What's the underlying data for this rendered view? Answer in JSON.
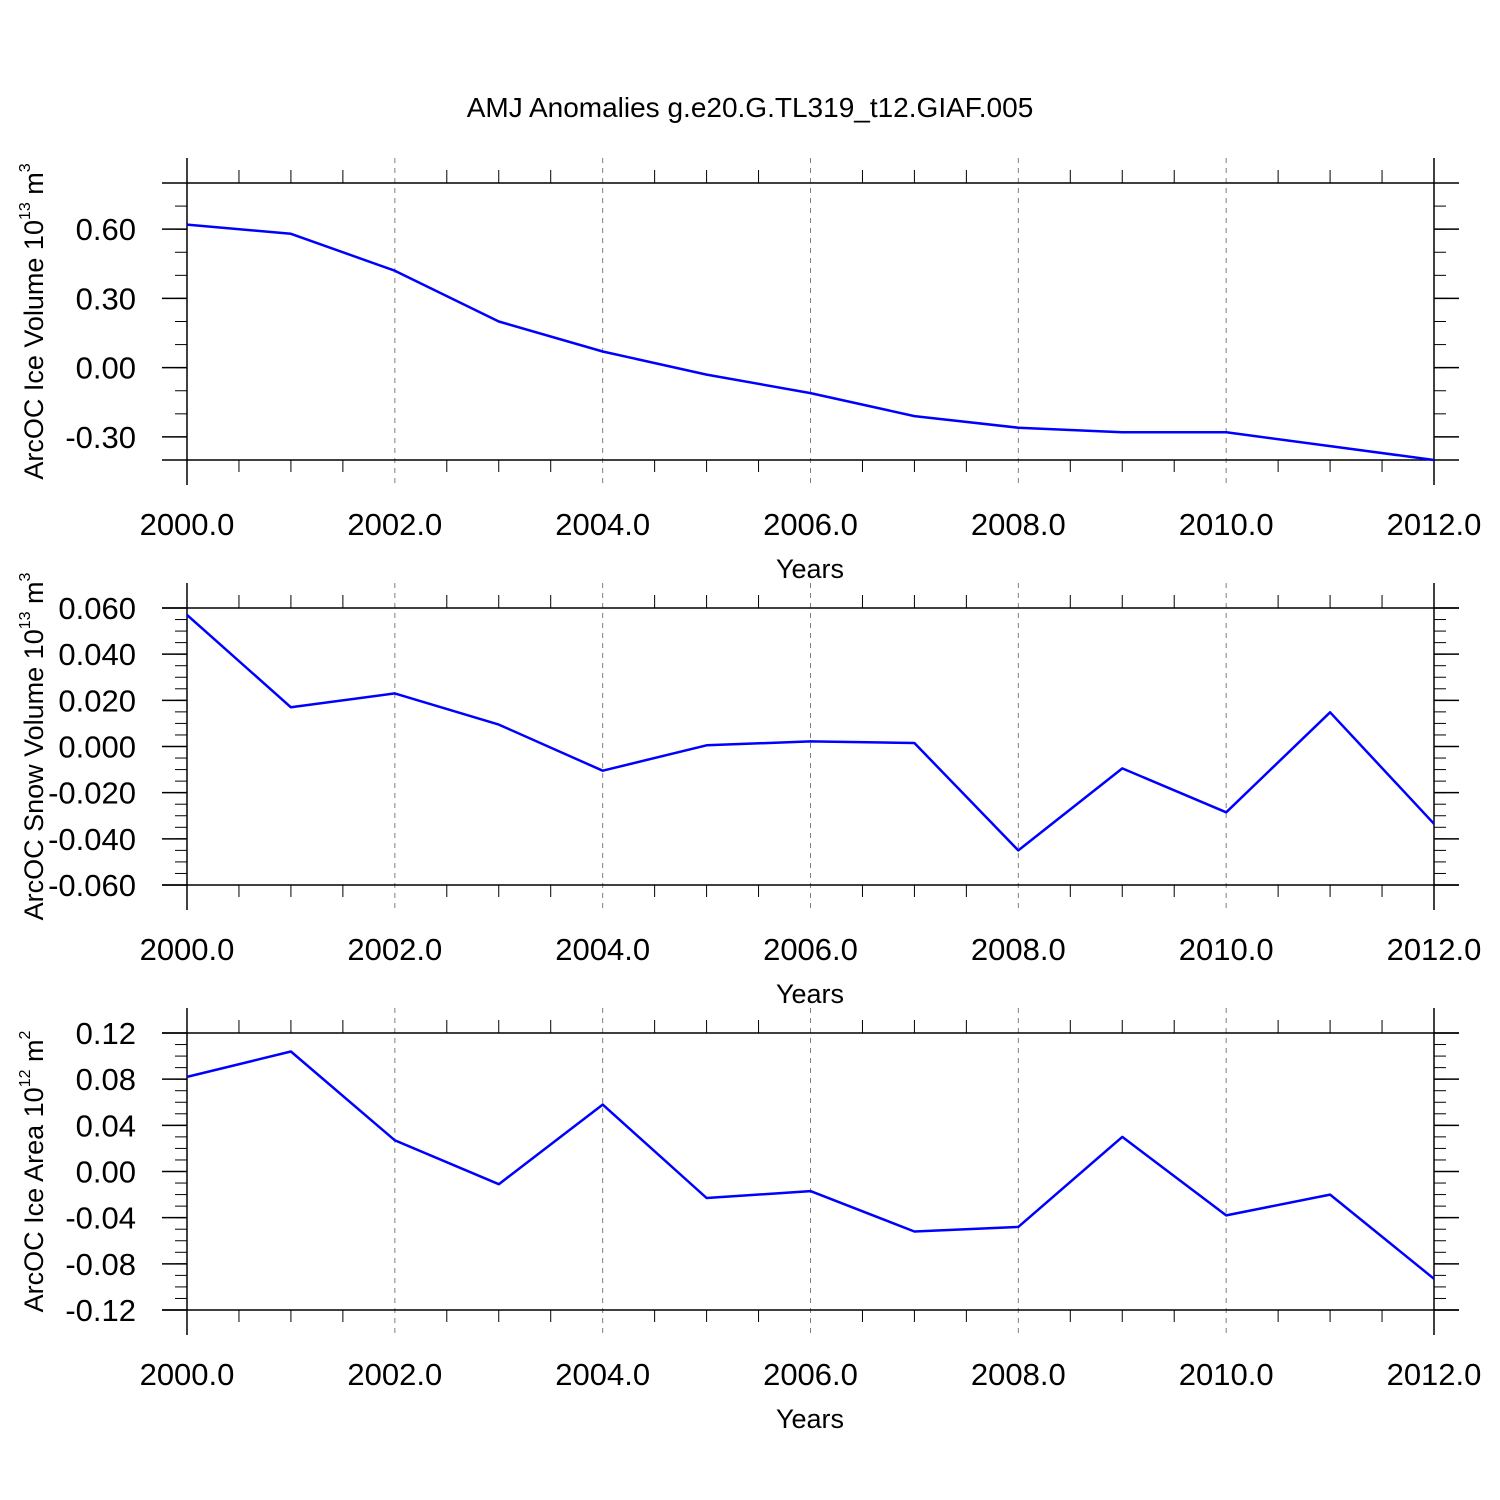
{
  "title": "AMJ Anomalies g.e20.G.TL319_t12.GIAF.005",
  "colors": {
    "series": "#0000ff",
    "axis": "#000000",
    "grid": "#7f7f7f"
  },
  "chart_data": [
    {
      "type": "line",
      "ylabel_text": "ArcOC Ice Volume 10",
      "ylabel_exp": "13",
      "ylabel_unit": " m",
      "ylabel_unit_exp": "3",
      "xlabel": "Years",
      "xlim": [
        2000,
        2012
      ],
      "ylim": [
        -0.4,
        0.8
      ],
      "x_ticks": [
        "2000.0",
        "2002.0",
        "2004.0",
        "2006.0",
        "2008.0",
        "2010.0",
        "2012.0"
      ],
      "y_ticks": [
        0.6,
        0.3,
        0.0,
        -0.3
      ],
      "y_tick_labels": [
        "0.60",
        "0.30",
        "0.00",
        "-0.30"
      ],
      "y_minor_step": 0.1,
      "grid": "vertical dashed at major x ticks",
      "x": [
        2000,
        2001,
        2002,
        2003,
        2004,
        2005,
        2006,
        2007,
        2008,
        2009,
        2010,
        2011,
        2012
      ],
      "values": [
        0.62,
        0.58,
        0.42,
        0.2,
        0.07,
        -0.03,
        -0.11,
        -0.21,
        -0.26,
        -0.28,
        -0.28,
        -0.34,
        -0.4
      ]
    },
    {
      "type": "line",
      "ylabel_text": "ArcOC Snow Volume 10",
      "ylabel_exp": "13",
      "ylabel_unit": " m",
      "ylabel_unit_exp": "3",
      "xlabel": "Years",
      "xlim": [
        2000,
        2012
      ],
      "ylim": [
        -0.06,
        0.06
      ],
      "x_ticks": [
        "2000.0",
        "2002.0",
        "2004.0",
        "2006.0",
        "2008.0",
        "2010.0",
        "2012.0"
      ],
      "y_ticks": [
        0.06,
        0.04,
        0.02,
        0.0,
        -0.02,
        -0.04,
        -0.06
      ],
      "y_tick_labels": [
        "0.060",
        "0.040",
        "0.020",
        "0.000",
        "-0.020",
        "-0.040",
        "-0.060"
      ],
      "y_minor_step": 0.005,
      "grid": "vertical dashed at major x ticks",
      "x": [
        2000,
        2001,
        2002,
        2003,
        2004,
        2005,
        2006,
        2007,
        2008,
        2009,
        2010,
        2011,
        2012
      ],
      "values": [
        0.057,
        0.017,
        0.023,
        0.0095,
        -0.0105,
        0.0005,
        0.0022,
        0.0015,
        -0.045,
        -0.0095,
        -0.0285,
        0.0148,
        -0.0335
      ]
    },
    {
      "type": "line",
      "ylabel_text": "ArcOC Ice Area 10",
      "ylabel_exp": "12",
      "ylabel_unit": " m",
      "ylabel_unit_exp": "2",
      "xlabel": "Years",
      "xlim": [
        2000,
        2012
      ],
      "ylim": [
        -0.12,
        0.12
      ],
      "x_ticks": [
        "2000.0",
        "2002.0",
        "2004.0",
        "2006.0",
        "2008.0",
        "2010.0",
        "2012.0"
      ],
      "y_ticks": [
        0.12,
        0.08,
        0.04,
        0.0,
        -0.04,
        -0.08,
        -0.12
      ],
      "y_tick_labels": [
        "0.12",
        "0.08",
        "0.04",
        "0.00",
        "-0.04",
        "-0.08",
        "-0.12"
      ],
      "y_minor_step": 0.01,
      "grid": "vertical dashed at major x ticks",
      "x": [
        2000,
        2001,
        2002,
        2003,
        2004,
        2005,
        2006,
        2007,
        2008,
        2009,
        2010,
        2011,
        2012
      ],
      "values": [
        0.082,
        0.104,
        0.027,
        -0.011,
        0.058,
        -0.023,
        -0.017,
        -0.052,
        -0.048,
        0.03,
        -0.038,
        -0.02,
        -0.093
      ]
    }
  ]
}
